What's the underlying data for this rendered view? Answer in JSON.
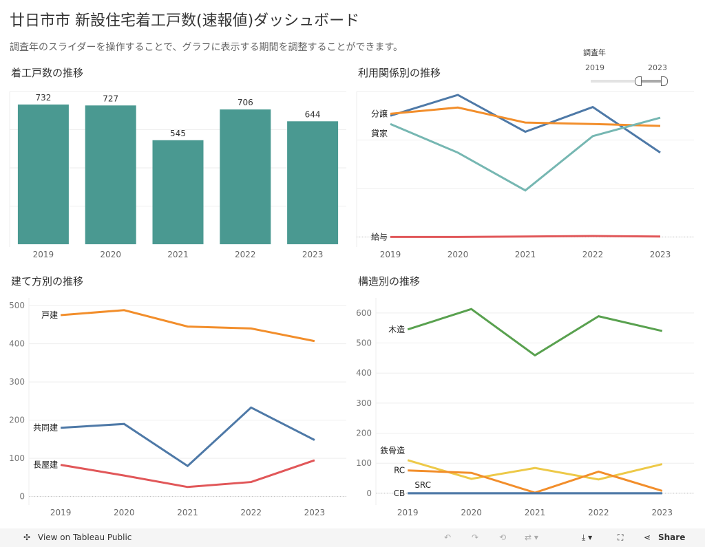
{
  "header": {
    "title": "廿日市市 新設住宅着工戸数(速報値)ダッシュボード",
    "subtitle": "調査年のスライダーを操作することで、グラフに表示する期間を調整することができます。"
  },
  "slider": {
    "label": "調査年",
    "min_label": "2019",
    "max_label": "2023",
    "range": [
      2019,
      2023
    ]
  },
  "footer": {
    "view_label": "View on Tableau Public",
    "share_label": "Share"
  },
  "chart_data": [
    {
      "id": "c1",
      "type": "bar",
      "title": "着工戸数の推移",
      "categories": [
        "2019",
        "2020",
        "2021",
        "2022",
        "2023"
      ],
      "values": [
        732,
        727,
        545,
        706,
        644
      ],
      "color": "#4a9991",
      "ylim": [
        0,
        800
      ],
      "grid": true
    },
    {
      "id": "c2",
      "type": "line",
      "title": "利用関係別の推移",
      "categories": [
        "2019",
        "2020",
        "2021",
        "2022",
        "2023"
      ],
      "ylim": [
        -15,
        300
      ],
      "grid": true,
      "series": [
        {
          "name": "",
          "color": "#4e79a7",
          "values": [
            250,
            293,
            217,
            268,
            174
          ]
        },
        {
          "name": "分譲",
          "color": "#f28e2b",
          "values": [
            254,
            267,
            236,
            233,
            229
          ]
        },
        {
          "name": "貸家",
          "color": "#76b7b2",
          "values": [
            233,
            174,
            96,
            208,
            246
          ]
        },
        {
          "name": "給与",
          "color": "#e15759",
          "values": [
            0,
            0,
            1,
            2,
            1
          ]
        }
      ]
    },
    {
      "id": "c3",
      "type": "line",
      "title": "建て方別の推移",
      "categories": [
        "2019",
        "2020",
        "2021",
        "2022",
        "2023"
      ],
      "ylim": [
        -15,
        520
      ],
      "yticks": [
        0,
        100,
        200,
        300,
        400,
        500
      ],
      "grid": true,
      "series": [
        {
          "name": "戸建",
          "color": "#f28e2b",
          "values": [
            475,
            488,
            445,
            440,
            407
          ]
        },
        {
          "name": "共同建",
          "color": "#4e79a7",
          "values": [
            180,
            190,
            80,
            233,
            148
          ]
        },
        {
          "name": "長屋建",
          "color": "#e15759",
          "values": [
            83,
            55,
            25,
            38,
            95
          ]
        }
      ]
    },
    {
      "id": "c4",
      "type": "line",
      "title": "構造別の推移",
      "categories": [
        "2019",
        "2020",
        "2021",
        "2022",
        "2023"
      ],
      "ylim": [
        -30,
        650
      ],
      "yticks": [
        0,
        100,
        200,
        300,
        400,
        500,
        600
      ],
      "grid": true,
      "series": [
        {
          "name": "木造",
          "color": "#59a14f",
          "values": [
            545,
            613,
            459,
            589,
            540
          ]
        },
        {
          "name": "鉄骨造",
          "color": "#edc948",
          "values": [
            110,
            48,
            84,
            46,
            97
          ]
        },
        {
          "name": "RC",
          "color": "#f28e2b",
          "values": [
            76,
            68,
            2,
            72,
            8
          ]
        },
        {
          "name": "SRC",
          "color": "#4e79a7",
          "values": [
            0,
            0,
            0,
            0,
            0
          ]
        },
        {
          "name": "CB",
          "color": "#4e79a7",
          "values": [
            0,
            0,
            0,
            0,
            0
          ]
        }
      ]
    }
  ]
}
